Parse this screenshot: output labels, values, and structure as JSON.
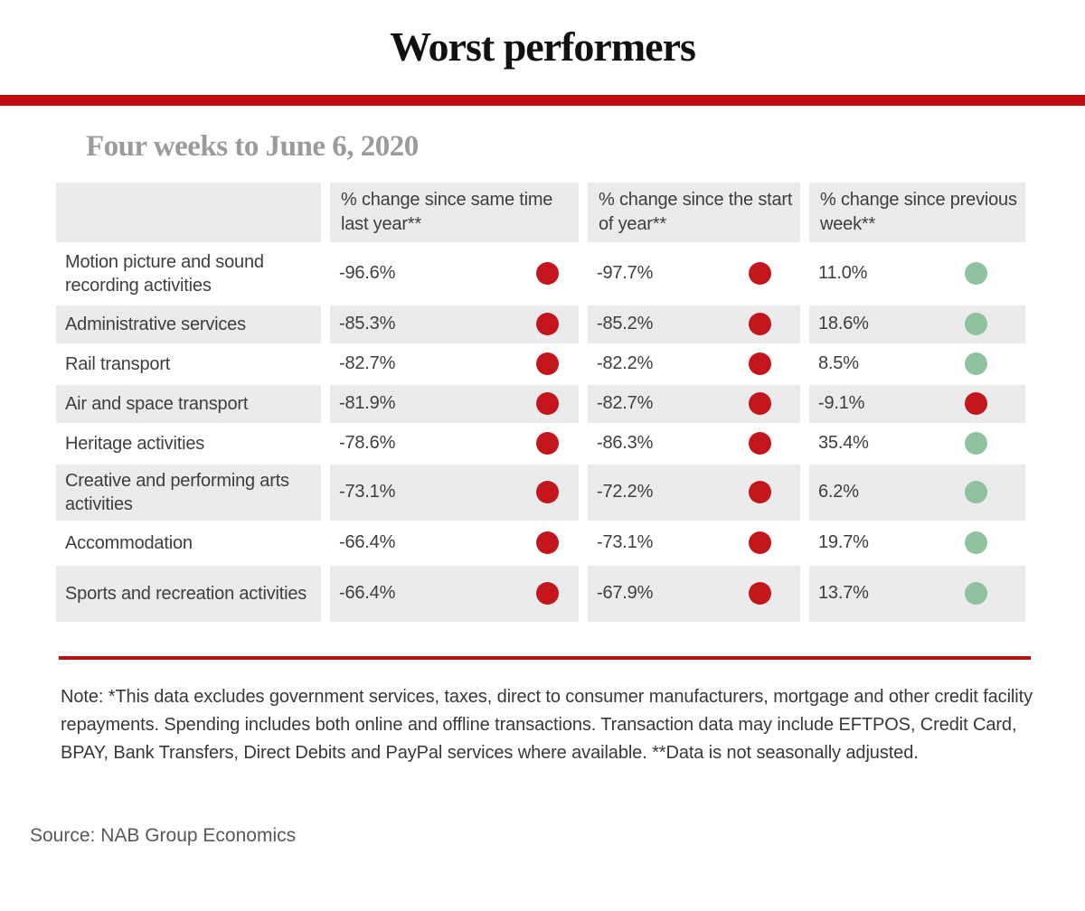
{
  "title": "Worst performers",
  "subtitle": "Four weeks to June 6, 2020",
  "note": "Note: *This data excludes government services, taxes, direct to consumer manufacturers, mortgage and other credit facility repayments. Spending includes both online and offline transactions. Transaction data may include EFTPOS, Credit Card, BPAY, Bank Transfers, Direct Debits and PayPal services where available. **Data is not seasonally adjusted.",
  "source": "Source: NAB Group Economics",
  "colors": {
    "bar-red": "#c20d10",
    "line-red": "#b90f0f",
    "dot-red": "#c3161c",
    "dot-green": "#8fc29e",
    "row-gray": "#ebebeb",
    "subtitle-gray": "#9b9b9b"
  },
  "chart_data": {
    "type": "table",
    "title": "Worst performers",
    "subtitle": "Four weeks to June 6, 2020",
    "columns": [
      "",
      "% change since same time last year**",
      "% change since the start of year**",
      "% change since previous week**"
    ],
    "dot_legend": {
      "red": "negative change",
      "green": "positive change"
    },
    "rows": [
      {
        "label": "Motion picture and sound recording activities",
        "cells": [
          {
            "value": "-96.6%",
            "status": "red"
          },
          {
            "value": "-97.7%",
            "status": "red"
          },
          {
            "value": "11.0%",
            "status": "green"
          }
        ]
      },
      {
        "label": "Administrative services",
        "cells": [
          {
            "value": "-85.3%",
            "status": "red"
          },
          {
            "value": "-85.2%",
            "status": "red"
          },
          {
            "value": "18.6%",
            "status": "green"
          }
        ]
      },
      {
        "label": "Rail transport",
        "cells": [
          {
            "value": "-82.7%",
            "status": "red"
          },
          {
            "value": "-82.2%",
            "status": "red"
          },
          {
            "value": "8.5%",
            "status": "green"
          }
        ]
      },
      {
        "label": "Air and space transport",
        "cells": [
          {
            "value": "-81.9%",
            "status": "red"
          },
          {
            "value": "-82.7%",
            "status": "red"
          },
          {
            "value": "-9.1%",
            "status": "red"
          }
        ]
      },
      {
        "label": "Heritage activities",
        "cells": [
          {
            "value": "-78.6%",
            "status": "red"
          },
          {
            "value": "-86.3%",
            "status": "red"
          },
          {
            "value": "35.4%",
            "status": "green"
          }
        ]
      },
      {
        "label": "Creative and performing arts activities",
        "cells": [
          {
            "value": "-73.1%",
            "status": "red"
          },
          {
            "value": "-72.2%",
            "status": "red"
          },
          {
            "value": "6.2%",
            "status": "green"
          }
        ]
      },
      {
        "label": "Accommodation",
        "cells": [
          {
            "value": "-66.4%",
            "status": "red"
          },
          {
            "value": "-73.1%",
            "status": "red"
          },
          {
            "value": "19.7%",
            "status": "green"
          }
        ]
      },
      {
        "label": "Sports and recreation activities",
        "cells": [
          {
            "value": "-66.4%",
            "status": "red"
          },
          {
            "value": "-67.9%",
            "status": "red"
          },
          {
            "value": "13.7%",
            "status": "green"
          }
        ]
      }
    ]
  }
}
